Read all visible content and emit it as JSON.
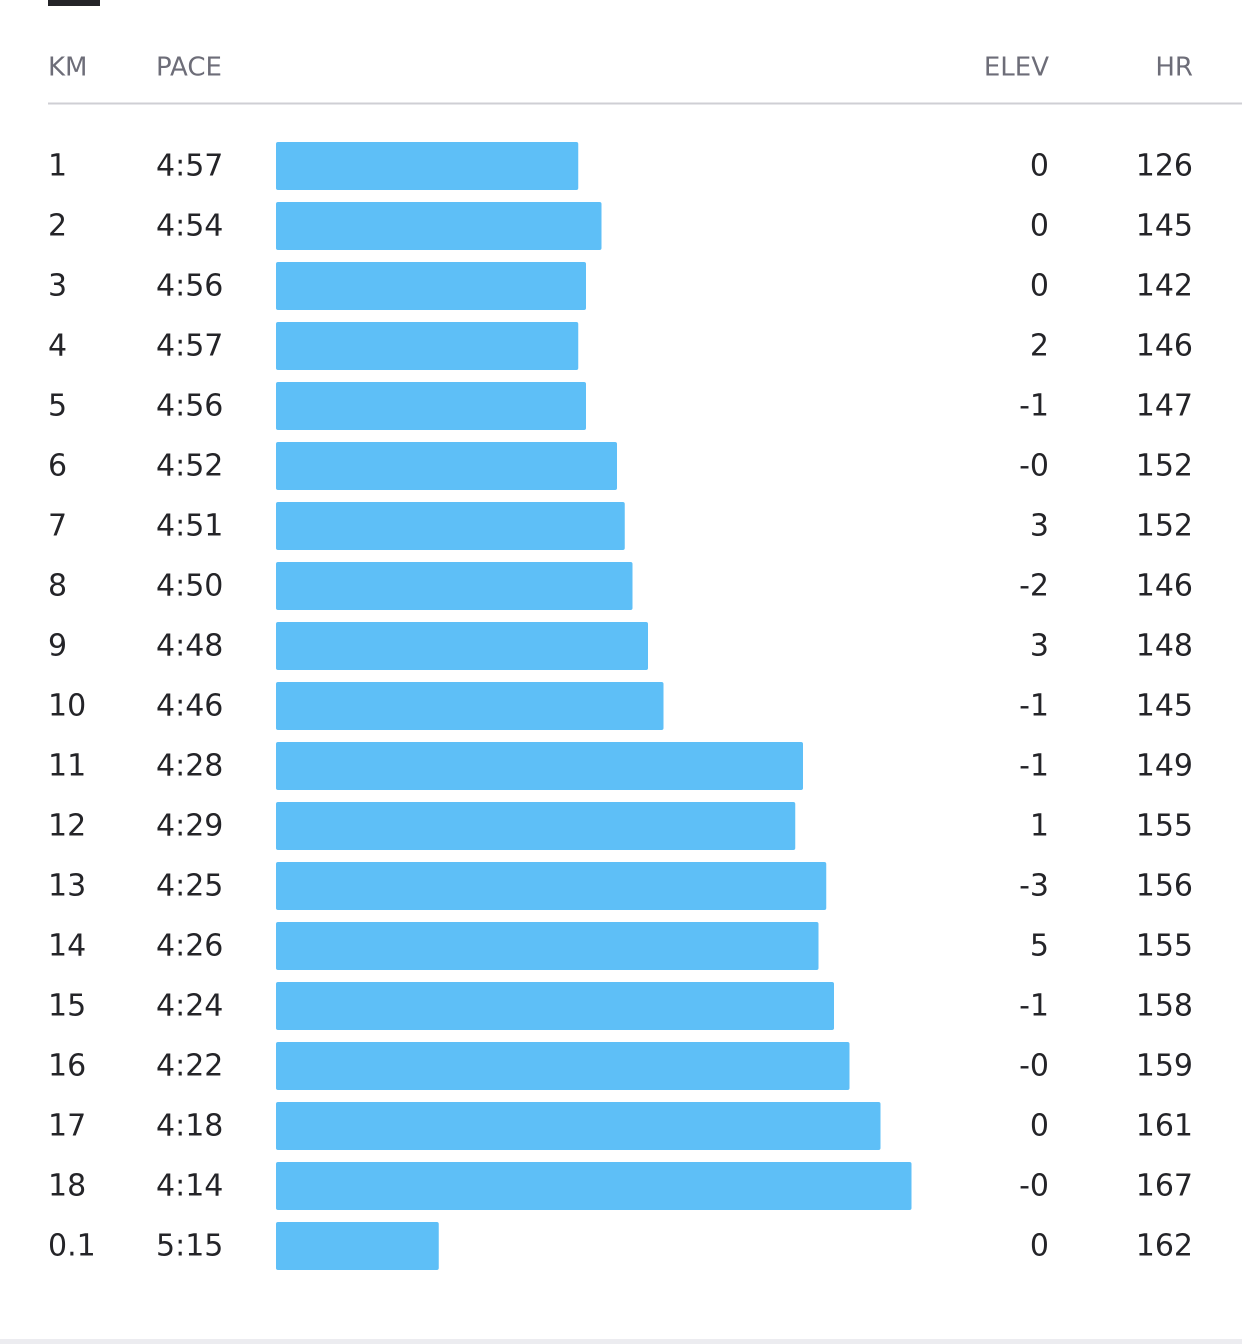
{
  "table": {
    "header": [
      "KM",
      "PACE",
      "ELEV",
      "HR"
    ],
    "rows": [
      [
        "1",
        "4:57",
        "0",
        "126"
      ],
      [
        "2",
        "4:54",
        "0",
        "145"
      ],
      [
        "3",
        "4:56",
        "0",
        "142"
      ],
      [
        "4",
        "4:57",
        "2",
        "146"
      ],
      [
        "5",
        "4:56",
        "-1",
        "147"
      ],
      [
        "6",
        "4:52",
        "-0",
        "152"
      ],
      [
        "7",
        "4:51",
        "3",
        "152"
      ],
      [
        "8",
        "4:50",
        "-2",
        "146"
      ],
      [
        "9",
        "4:48",
        "3",
        "148"
      ],
      [
        "10",
        "4:46",
        "-1",
        "145"
      ],
      [
        "11",
        "4:28",
        "-1",
        "149"
      ],
      [
        "12",
        "4:29",
        "1",
        "155"
      ],
      [
        "13",
        "4:25",
        "-3",
        "156"
      ],
      [
        "14",
        "4:26",
        "5",
        "155"
      ],
      [
        "15",
        "4:24",
        "-1",
        "158"
      ],
      [
        "16",
        "4:22",
        "-0",
        "159"
      ],
      [
        "17",
        "4:18",
        "0",
        "161"
      ],
      [
        "18",
        "4:14",
        "-0",
        "167"
      ],
      [
        "0.1",
        "5:15",
        "0",
        "162"
      ]
    ]
  }
}
